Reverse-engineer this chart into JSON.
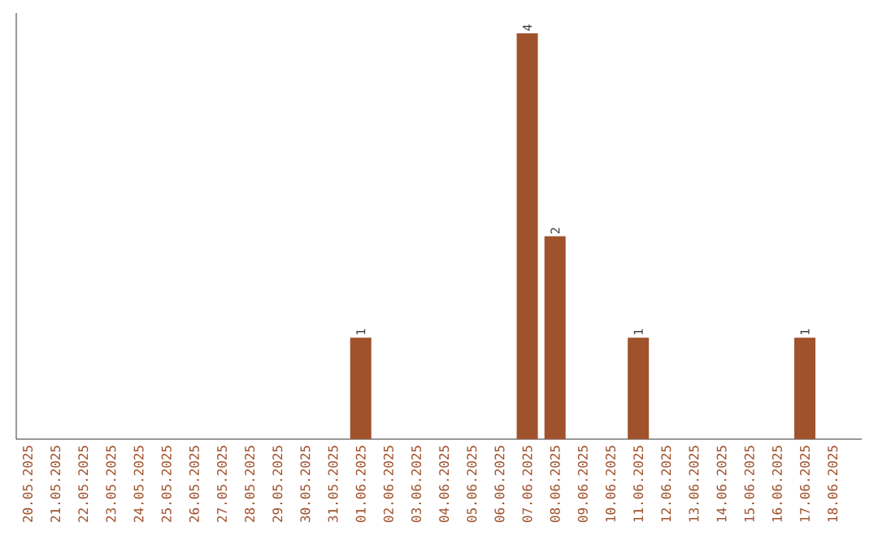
{
  "chart_data": {
    "type": "bar",
    "categories": [
      "20.05.2025",
      "21.05.2025",
      "22.05.2025",
      "23.05.2025",
      "24.05.2025",
      "25.05.2025",
      "26.05.2025",
      "27.05.2025",
      "28.05.2025",
      "29.05.2025",
      "30.05.2025",
      "31.05.2025",
      "01.06.2025",
      "02.06.2025",
      "03.06.2025",
      "04.06.2025",
      "05.06.2025",
      "06.06.2025",
      "07.06.2025",
      "08.06.2025",
      "09.06.2025",
      "10.06.2025",
      "11.06.2025",
      "12.06.2025",
      "13.06.2025",
      "14.06.2025",
      "15.06.2025",
      "16.06.2025",
      "17.06.2025",
      "18.06.2025"
    ],
    "values": [
      null,
      null,
      null,
      null,
      null,
      null,
      null,
      null,
      null,
      null,
      null,
      null,
      1,
      null,
      null,
      null,
      null,
      null,
      4,
      2,
      null,
      null,
      1,
      null,
      null,
      null,
      null,
      null,
      1,
      null
    ],
    "data_labels": true,
    "color": "#a0522d"
  }
}
